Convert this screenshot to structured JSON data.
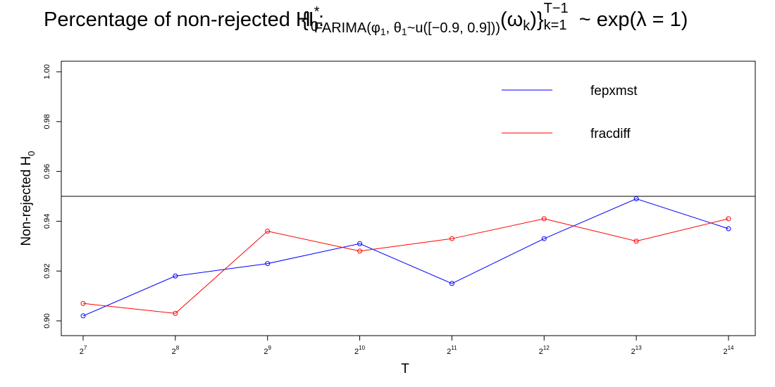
{
  "chart_data": {
    "type": "line",
    "title_main": "Percentage of non-rejected H",
    "title_main_sub": "0",
    "title_colon": ":",
    "title_formula": {
      "open_brace": "{I",
      "star": "*",
      "model": "FARIMA(φ",
      "phi_sub": "1",
      "mid": ", θ",
      "theta_sub": "1",
      "dist": "~u([−0.9, 0.9]))",
      "omega": "(ω",
      "omega_sub": "k",
      "omega_close": ")}",
      "upper": "T−1",
      "lower": "k=1",
      "tail": " ~ exp(λ = 1)"
    },
    "xlabel": "T",
    "ylabel": "Non-rejected H",
    "ylabel_sub": "0",
    "x_tick_base": "2",
    "x_tick_exponents": [
      "7",
      "8",
      "9",
      "10",
      "11",
      "12",
      "13",
      "14"
    ],
    "ylim": [
      0.9,
      1.0
    ],
    "y_ticks": [
      "0.90",
      "0.92",
      "0.94",
      "0.96",
      "0.98",
      "1.00"
    ],
    "reference_line": 0.95,
    "legend_position": "top-right",
    "series": [
      {
        "name": "fepxmst",
        "color": "#0000ff",
        "values": [
          0.902,
          0.918,
          0.923,
          0.931,
          0.915,
          0.933,
          0.949,
          0.937
        ]
      },
      {
        "name": "fracdiff",
        "color": "#ff0000",
        "values": [
          0.907,
          0.903,
          0.936,
          0.928,
          0.933,
          0.941,
          0.932,
          0.941
        ]
      }
    ]
  }
}
